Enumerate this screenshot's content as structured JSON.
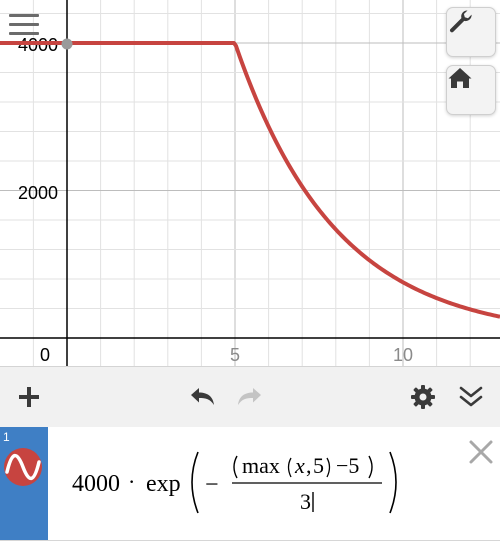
{
  "graph": {
    "y_tick_labels": [
      "4000",
      "2000",
      "0"
    ],
    "x_tick_labels": [
      "5",
      "10"
    ],
    "colors": {
      "curve": "#c74440",
      "axis": "#000000",
      "grid": "#dcdcdc",
      "point": "#9a9a9a"
    }
  },
  "controls": {
    "menu_icon": "hamburger-menu-icon",
    "settings_icon": "wrench-icon",
    "home_icon": "home-icon"
  },
  "toolbar": {
    "add_icon": "plus-icon",
    "undo_icon": "undo-icon",
    "redo_icon": "redo-icon",
    "settings_icon": "gear-icon",
    "collapse_icon": "double-chevron-down-icon"
  },
  "expression": {
    "index": "1",
    "color": "#c74440",
    "gutter_color": "#3f7fc5",
    "coef": "4000",
    "func": "exp",
    "minus": "−",
    "max_name": "max",
    "var_x": "x",
    "five": "5",
    "minus_five": "−5",
    "denominator": "3",
    "delete_icon": "close-icon"
  }
}
